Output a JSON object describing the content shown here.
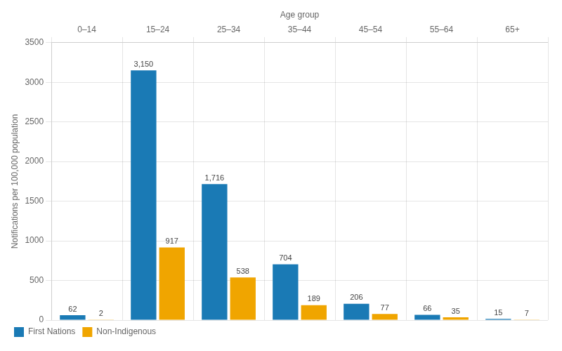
{
  "chart_data": {
    "type": "bar",
    "xlabel": "Age group",
    "ylabel": "Notifications per 100,000 population",
    "categories": [
      "0–14",
      "15–24",
      "25–34",
      "35–44",
      "45–54",
      "55–64",
      "65+"
    ],
    "series": [
      {
        "name": "First Nations",
        "color": "#1a7ab5",
        "values": [
          62,
          3150,
          1716,
          704,
          206,
          66,
          15
        ],
        "value_labels": [
          "62",
          "3,150",
          "1,716",
          "704",
          "206",
          "66",
          "15"
        ]
      },
      {
        "name": "Non-Indigenous",
        "color": "#f0a500",
        "values": [
          2,
          917,
          538,
          189,
          77,
          35,
          7
        ],
        "value_labels": [
          "2",
          "917",
          "538",
          "189",
          "77",
          "35",
          "7"
        ]
      }
    ],
    "ylim": [
      0,
      3500
    ],
    "yticks": [
      0,
      500,
      1000,
      1500,
      2000,
      2500,
      3000,
      3500
    ],
    "grid": true,
    "legend": "lower left",
    "data_labels": true
  }
}
